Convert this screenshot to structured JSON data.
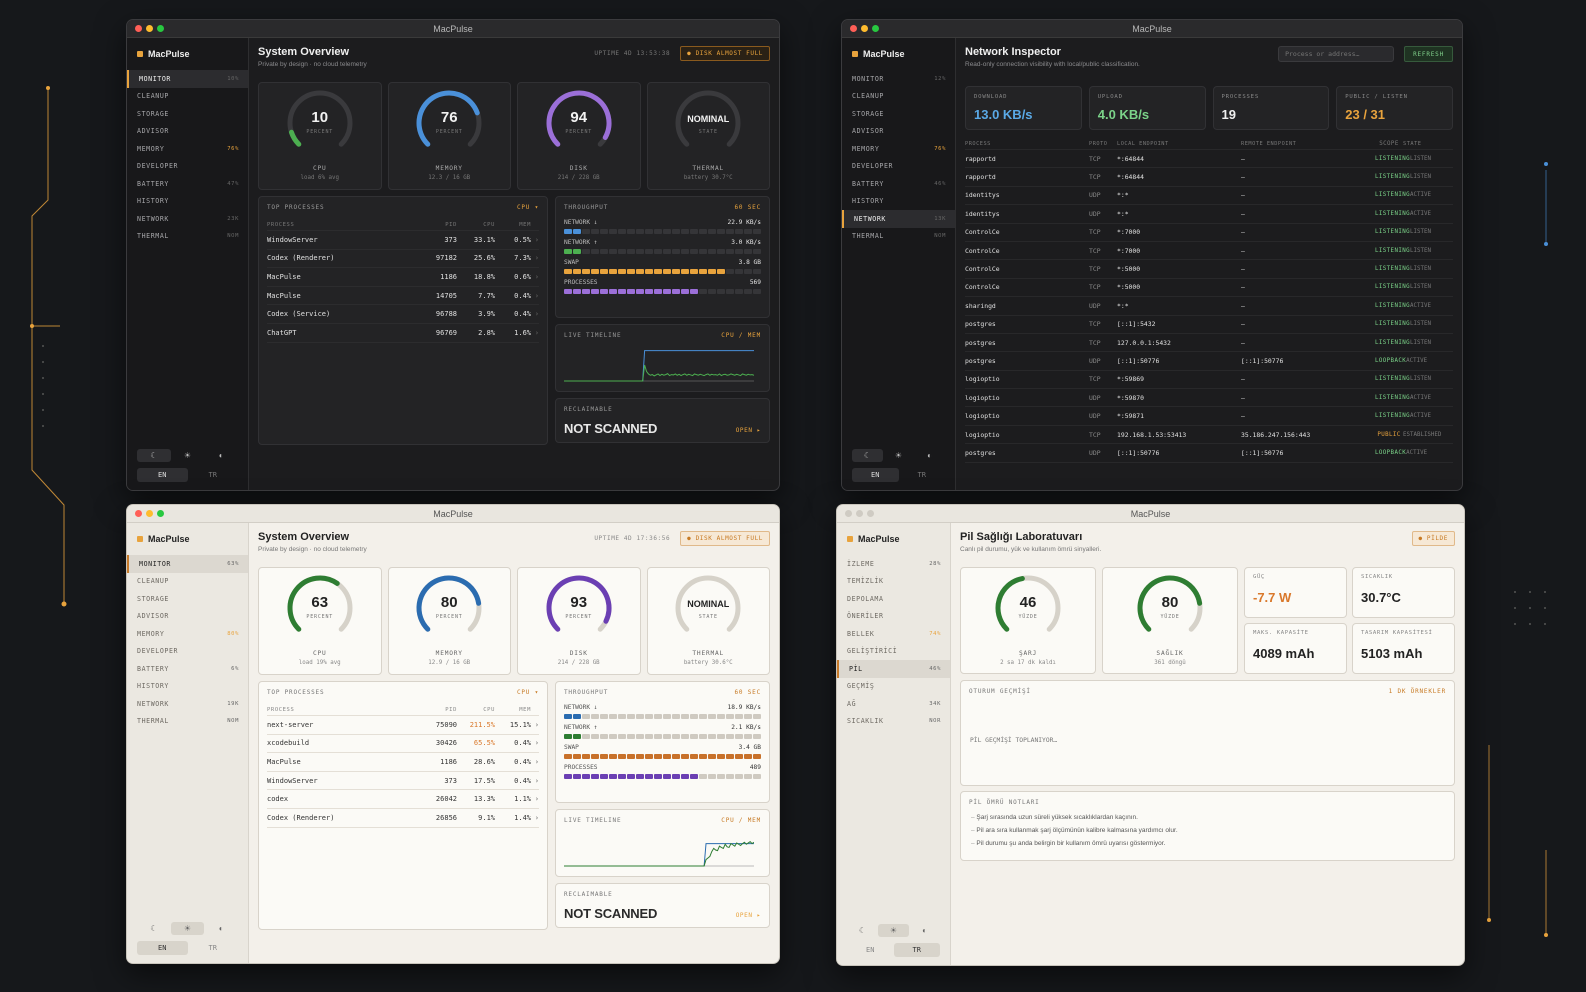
{
  "app_name": "MacPulse",
  "sidebar_en": {
    "items": [
      {
        "label": "MONITOR"
      },
      {
        "label": "CLEANUP"
      },
      {
        "label": "STORAGE"
      },
      {
        "label": "ADVISOR"
      },
      {
        "label": "MEMORY"
      },
      {
        "label": "DEVELOPER"
      },
      {
        "label": "BATTERY"
      },
      {
        "label": "HISTORY"
      },
      {
        "label": "NETWORK"
      },
      {
        "label": "THERMAL"
      }
    ]
  },
  "theme_icons": [
    "moon-icon",
    "sun-icon",
    "contrast-icon"
  ],
  "theme_glyphs": {
    "moon": "☾",
    "sun": "☀",
    "auto": "◐"
  },
  "languages": {
    "en": "EN",
    "tr": "TR"
  },
  "overview_common": {
    "title": "System Overview",
    "subtitle": "Private by design · no cloud telemetry",
    "alert": "● DISK ALMOST FULL",
    "gauge_unit": "PERCENT",
    "state_unit": "STATE",
    "labels": {
      "cpu": "CPU",
      "memory": "MEMORY",
      "disk": "DISK",
      "thermal": "THERMAL"
    },
    "top_processes": "TOP PROCESSES",
    "sort": "CPU ▾",
    "cols": {
      "process": "PROCESS",
      "pid": "PID",
      "cpu": "CPU",
      "mem": "MEM"
    },
    "throughput": "THROUGHPUT",
    "window": "60 SEC",
    "tp_labels": {
      "down": "NETWORK ↓",
      "up": "NETWORK ↑",
      "swap": "SWAP",
      "procs": "PROCESSES"
    },
    "timeline": "LIVE TIMELINE",
    "timeline_legend": "CPU / MEM",
    "reclaimable": "RECLAIMABLE",
    "reclaim_value": "NOT SCANNED",
    "open": "OPEN ▸",
    "accent_colors": {
      "cpu": "#4caf50",
      "memory": "#4a90d9",
      "disk": "#9b6fd8",
      "thermal": "#8a8a8a",
      "warn": "#e8a33d"
    }
  },
  "overview_dark": {
    "uptime": "UPTIME 4D 13:53:38",
    "nav_values": [
      "10%",
      "",
      "",
      "",
      "76%",
      "",
      "47%",
      "",
      "23K",
      "NOM"
    ],
    "cpu": {
      "value": "10",
      "percent": 10,
      "sub": "load 6% avg"
    },
    "memory": {
      "value": "76",
      "percent": 76,
      "sub": "12.3 / 16 GB"
    },
    "disk": {
      "value": "94",
      "percent": 94,
      "sub": "214 / 228 GB"
    },
    "thermal": {
      "value": "NOMINAL",
      "sub": "battery 30.7°C"
    },
    "processes": [
      {
        "name": "WindowServer",
        "pid": "373",
        "cpu": "33.1%",
        "mem": "0.5%"
      },
      {
        "name": "Codex (Renderer)",
        "pid": "97182",
        "cpu": "25.6%",
        "mem": "7.3%"
      },
      {
        "name": "MacPulse",
        "pid": "1186",
        "cpu": "18.8%",
        "mem": "0.6%"
      },
      {
        "name": "MacPulse",
        "pid": "14705",
        "cpu": "7.7%",
        "mem": "0.4%"
      },
      {
        "name": "Codex (Service)",
        "pid": "96788",
        "cpu": "3.9%",
        "mem": "0.4%"
      },
      {
        "name": "ChatGPT",
        "pid": "96769",
        "cpu": "2.8%",
        "mem": "1.6%"
      }
    ],
    "throughput": {
      "down": "22.9 KB/s",
      "up": "3.0 KB/s",
      "swap": "3.8 GB",
      "procs": "569"
    },
    "throughput_fill": {
      "down": 0.08,
      "up": 0.08,
      "swap": 0.82,
      "procs": 0.66
    },
    "timeline_cpu": [
      0,
      0,
      0,
      0,
      0,
      0,
      0,
      0,
      0,
      0,
      0,
      0,
      0,
      0,
      0,
      0,
      0,
      0,
      0,
      0,
      0,
      0,
      0,
      0,
      0,
      0,
      0,
      0,
      0,
      0,
      0,
      0,
      0,
      0,
      0,
      0,
      0,
      0,
      0,
      0,
      0,
      0,
      95,
      95,
      95,
      95,
      95,
      95,
      95,
      95,
      95,
      95,
      95,
      95,
      95,
      95,
      95,
      95,
      95,
      95,
      95,
      95,
      95,
      95,
      95,
      95,
      95,
      95,
      95,
      95,
      95,
      95,
      95,
      95,
      95,
      95,
      95,
      95,
      95,
      95,
      95,
      95,
      95,
      95,
      95,
      95,
      95,
      95,
      95,
      95,
      95,
      95,
      95,
      95,
      95,
      95,
      95,
      95,
      95,
      95
    ],
    "timeline_mem": [
      0,
      0,
      0,
      0,
      0,
      0,
      0,
      0,
      0,
      0,
      0,
      0,
      0,
      0,
      0,
      0,
      0,
      0,
      0,
      0,
      0,
      0,
      0,
      0,
      0,
      0,
      0,
      0,
      0,
      0,
      0,
      0,
      0,
      0,
      0,
      0,
      0,
      0,
      0,
      0,
      0,
      0,
      50,
      30,
      22,
      18,
      20,
      16,
      19,
      22,
      17,
      21,
      18,
      20,
      23,
      17,
      20,
      19,
      22,
      18,
      21,
      17,
      20,
      22,
      18,
      21,
      19,
      17,
      22,
      20,
      18,
      21,
      19,
      17,
      20,
      22,
      18,
      21,
      19,
      20,
      18,
      22,
      17,
      20,
      21,
      18,
      19,
      22,
      20,
      18,
      21,
      19,
      17,
      22,
      20,
      18,
      21,
      19,
      20,
      18
    ]
  },
  "overview_light": {
    "uptime": "UPTIME 4D 17:36:56",
    "nav_values": [
      "63%",
      "",
      "",
      "",
      "80%",
      "",
      "6%",
      "",
      "19K",
      "NOM"
    ],
    "cpu": {
      "value": "63",
      "percent": 63,
      "sub": "load 19% avg"
    },
    "memory": {
      "value": "80",
      "percent": 80,
      "sub": "12.9 / 16 GB"
    },
    "disk": {
      "value": "93",
      "percent": 93,
      "sub": "214 / 228 GB"
    },
    "thermal": {
      "value": "NOMINAL",
      "sub": "battery 30.6°C"
    },
    "processes": [
      {
        "name": "  next-server",
        "pid": "75090",
        "cpu": "211.5%",
        "mem": "15.1%"
      },
      {
        "name": "xcodebuild",
        "pid": "30426",
        "cpu": "65.5%",
        "mem": "0.4%"
      },
      {
        "name": "MacPulse",
        "pid": "1186",
        "cpu": "28.6%",
        "mem": "0.4%"
      },
      {
        "name": "WindowServer",
        "pid": "373",
        "cpu": "17.5%",
        "mem": "0.4%"
      },
      {
        "name": "codex",
        "pid": "26042",
        "cpu": "13.3%",
        "mem": "1.1%"
      },
      {
        "name": "Codex (Renderer)",
        "pid": "26856",
        "cpu": "9.1%",
        "mem": "1.4%"
      }
    ],
    "throughput": {
      "down": "18.9 KB/s",
      "up": "2.1 KB/s",
      "swap": "3.4 GB",
      "procs": "489"
    },
    "throughput_fill": {
      "down": 0.08,
      "up": 0.08,
      "swap": 1.0,
      "procs": 0.66
    },
    "timeline_cpu": [
      0,
      0,
      0,
      0,
      0,
      0,
      0,
      0,
      0,
      0,
      0,
      0,
      0,
      0,
      0,
      0,
      0,
      0,
      0,
      0,
      0,
      0,
      0,
      0,
      0,
      0,
      0,
      0,
      0,
      0,
      0,
      0,
      0,
      0,
      0,
      0,
      0,
      0,
      0,
      0,
      0,
      0,
      0,
      0,
      0,
      0,
      0,
      0,
      0,
      0,
      0,
      0,
      0,
      0,
      0,
      0,
      0,
      0,
      0,
      0,
      0,
      0,
      0,
      0,
      0,
      0,
      0,
      0,
      0,
      0,
      0,
      0,
      0,
      0,
      70,
      70,
      70,
      70,
      70,
      70,
      70,
      70,
      70,
      70,
      70,
      70,
      70,
      70,
      70,
      70,
      70,
      70,
      70,
      70,
      70,
      70,
      70,
      70,
      70,
      70
    ],
    "timeline_mem": [
      0,
      0,
      0,
      0,
      0,
      0,
      0,
      0,
      0,
      0,
      0,
      0,
      0,
      0,
      0,
      0,
      0,
      0,
      0,
      0,
      0,
      0,
      0,
      0,
      0,
      0,
      0,
      0,
      0,
      0,
      0,
      0,
      0,
      0,
      0,
      0,
      0,
      0,
      0,
      0,
      0,
      0,
      0,
      0,
      0,
      0,
      0,
      0,
      0,
      0,
      0,
      0,
      0,
      0,
      0,
      0,
      0,
      0,
      0,
      0,
      0,
      0,
      0,
      0,
      0,
      0,
      0,
      0,
      0,
      0,
      0,
      0,
      0,
      0,
      20,
      25,
      30,
      45,
      55,
      50,
      48,
      62,
      58,
      55,
      68,
      60,
      58,
      70,
      66,
      62,
      72,
      68,
      64,
      70,
      74,
      68,
      72,
      76,
      70,
      74
    ]
  },
  "network": {
    "title": "Network Inspector",
    "subtitle": "Read-only connection visibility with local/public classification.",
    "search_placeholder": "Process or address…",
    "refresh": "REFRESH",
    "nav_values": [
      "12%",
      "",
      "",
      "",
      "76%",
      "",
      "46%",
      "",
      "13K",
      "NOM"
    ],
    "stats": [
      {
        "label": "DOWNLOAD",
        "value": "13.0 KB/s",
        "color": "#5aa9e6"
      },
      {
        "label": "UPLOAD",
        "value": "4.0 KB/s",
        "color": "#7bd389"
      },
      {
        "label": "PROCESSES",
        "value": "19",
        "color": "#f0f0f0"
      },
      {
        "label": "PUBLIC / LISTEN",
        "value": "23 / 31",
        "color": "#e8a33d"
      }
    ],
    "cols": {
      "process": "PROCESS",
      "proto": "PROTO",
      "local": "LOCAL ENDPOINT",
      "remote": "REMOTE ENDPOINT",
      "scope": "SCOPE",
      "state": "STATE"
    },
    "scope_colors": {
      "LISTENING": "#7bd389",
      "LOOPBACK": "#7bd389",
      "PUBLIC": "#e8a33d"
    },
    "rows": [
      {
        "process": "rapportd",
        "proto": "TCP",
        "local": "*:64844",
        "remote": "—",
        "scope": "LISTENING",
        "state": "LISTEN"
      },
      {
        "process": "rapportd",
        "proto": "TCP",
        "local": "*:64844",
        "remote": "—",
        "scope": "LISTENING",
        "state": "LISTEN"
      },
      {
        "process": "identitys",
        "proto": "UDP",
        "local": "*:*",
        "remote": "—",
        "scope": "LISTENING",
        "state": "ACTIVE"
      },
      {
        "process": "identitys",
        "proto": "UDP",
        "local": "*:*",
        "remote": "—",
        "scope": "LISTENING",
        "state": "ACTIVE"
      },
      {
        "process": "ControlCe",
        "proto": "TCP",
        "local": "*:7000",
        "remote": "—",
        "scope": "LISTENING",
        "state": "LISTEN"
      },
      {
        "process": "ControlCe",
        "proto": "TCP",
        "local": "*:7000",
        "remote": "—",
        "scope": "LISTENING",
        "state": "LISTEN"
      },
      {
        "process": "ControlCe",
        "proto": "TCP",
        "local": "*:5000",
        "remote": "—",
        "scope": "LISTENING",
        "state": "LISTEN"
      },
      {
        "process": "ControlCe",
        "proto": "TCP",
        "local": "*:5000",
        "remote": "—",
        "scope": "LISTENING",
        "state": "LISTEN"
      },
      {
        "process": "sharingd",
        "proto": "UDP",
        "local": "*:*",
        "remote": "—",
        "scope": "LISTENING",
        "state": "ACTIVE"
      },
      {
        "process": "postgres",
        "proto": "TCP",
        "local": "[::1]:5432",
        "remote": "—",
        "scope": "LISTENING",
        "state": "LISTEN"
      },
      {
        "process": "postgres",
        "proto": "TCP",
        "local": "127.0.0.1:5432",
        "remote": "—",
        "scope": "LISTENING",
        "state": "LISTEN"
      },
      {
        "process": "postgres",
        "proto": "UDP",
        "local": "[::1]:50776",
        "remote": "[::1]:50776",
        "scope": "LOOPBACK",
        "state": "ACTIVE"
      },
      {
        "process": "logioptio",
        "proto": "TCP",
        "local": "*:59869",
        "remote": "—",
        "scope": "LISTENING",
        "state": "LISTEN"
      },
      {
        "process": "logioptio",
        "proto": "UDP",
        "local": "*:59870",
        "remote": "—",
        "scope": "LISTENING",
        "state": "ACTIVE"
      },
      {
        "process": "logioptio",
        "proto": "UDP",
        "local": "*:59871",
        "remote": "—",
        "scope": "LISTENING",
        "state": "ACTIVE"
      },
      {
        "process": "logioptio",
        "proto": "TCP",
        "local": "192.168.1.53:53413",
        "remote": "35.186.247.156:443",
        "scope": "PUBLIC",
        "state": "ESTABLISHED"
      },
      {
        "process": "postgres",
        "proto": "UDP",
        "local": "[::1]:50776",
        "remote": "[::1]:50776",
        "scope": "LOOPBACK",
        "state": "ACTIVE"
      }
    ]
  },
  "battery": {
    "title": "Pil Sağlığı Laboratuvarı",
    "subtitle": "Canlı pil durumu, yük ve kullanım ömrü sinyalleri.",
    "badge": "● PİLDE",
    "nav": [
      "İZLEME",
      "TEMİZLİK",
      "DEPOLAMA",
      "ÖNERİLER",
      "BELLEK",
      "GELİŞTİRİCİ",
      "PİL",
      "GEÇMİŞ",
      "AĞ",
      "SICAKLIK"
    ],
    "nav_values": [
      "28%",
      "",
      "",
      "",
      "74%",
      "",
      "46%",
      "",
      "34K",
      "NOR"
    ],
    "charge": {
      "value": "46",
      "percent": 46,
      "unit": "YÜZDE",
      "label": "ŞARJ",
      "sub": "2 sa 17 dk kaldı"
    },
    "health": {
      "value": "80",
      "percent": 80,
      "unit": "YÜZDE",
      "label": "SAĞLIK",
      "sub": "361 döngü"
    },
    "power": {
      "label": "GÜÇ",
      "value": "-7.7 W"
    },
    "temp": {
      "label": "SICAKLIK",
      "value": "30.7°C"
    },
    "maxcap": {
      "label": "MAKS. KAPASİTE",
      "value": "4089 mAh"
    },
    "designcap": {
      "label": "TASARIM KAPASİTESİ",
      "value": "5103 mAh"
    },
    "session": "OTURUM GEÇMİŞİ",
    "session_right": "1 DK ÖRNEKLER",
    "session_wait": "PİL GEÇMİŞİ TOPLANIYOR…",
    "notes_title": "PİL ÖMRÜ NOTLARI",
    "notes": [
      "Şarj sırasında uzun süreli yüksek sıcaklıklardan kaçının.",
      "Pil ara sıra kullanmak şarj ölçümünün kalibre kalmasına yardımcı olur.",
      "Pil durumu şu anda belirgin bir kullanım ömrü uyarısı göstermiyor."
    ]
  }
}
